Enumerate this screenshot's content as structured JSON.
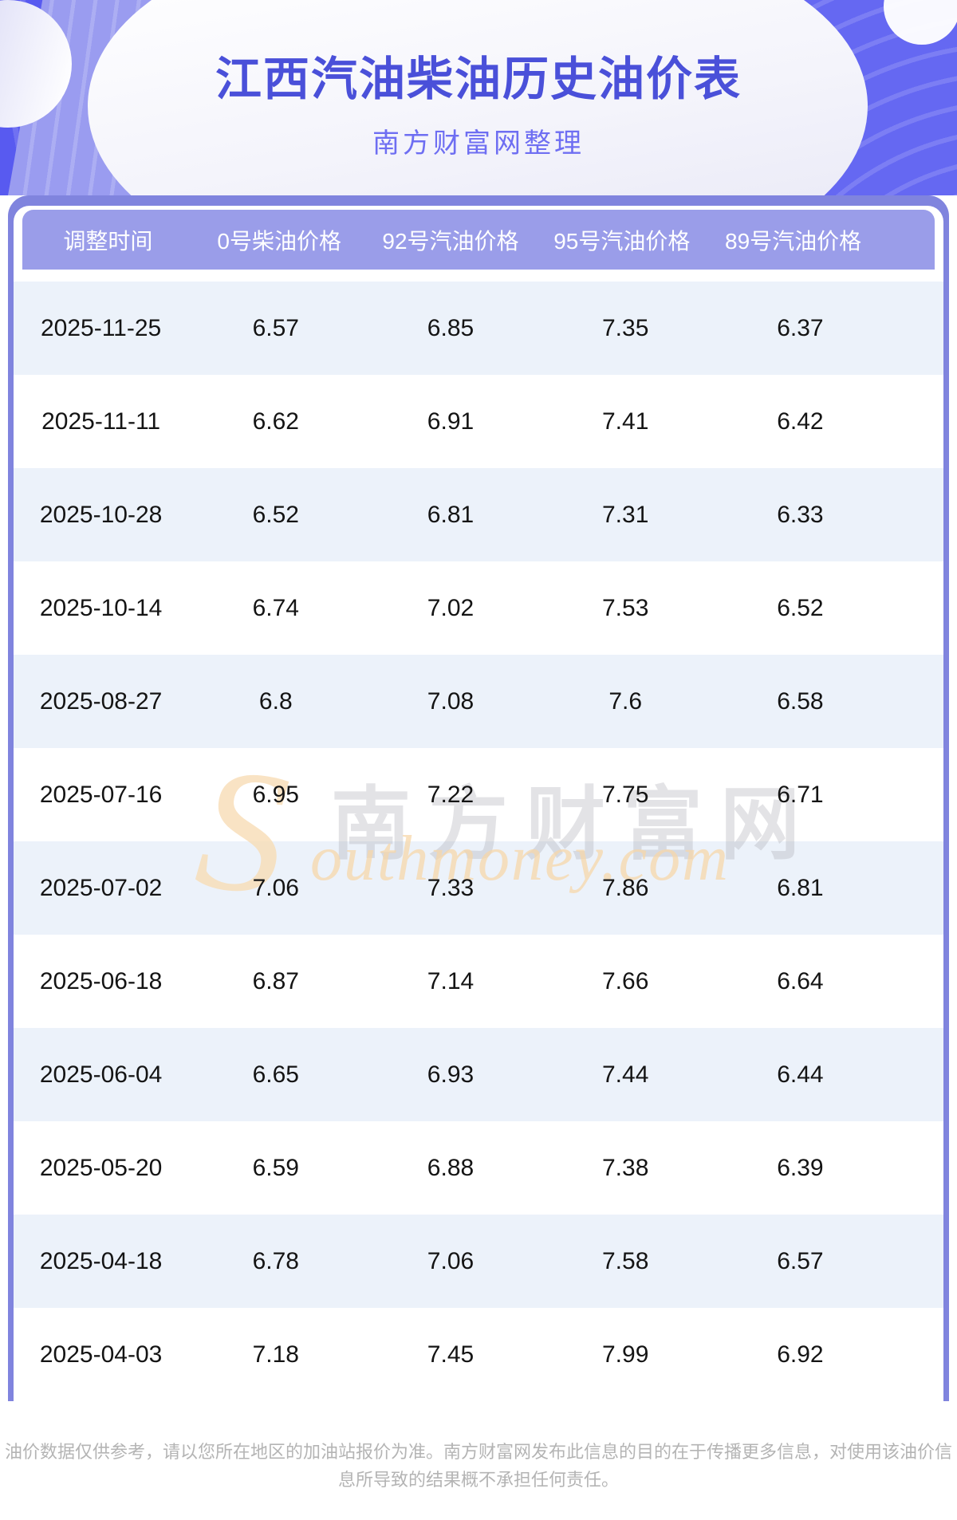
{
  "header": {
    "title": "江西汽油柴油历史油价表",
    "subtitle": "南方财富网整理"
  },
  "table": {
    "columns": [
      "调整时间",
      "0号柴油价格",
      "92号汽油价格",
      "95号汽油价格",
      "89号汽油价格"
    ],
    "rows": [
      [
        "2025-11-25",
        "6.57",
        "6.85",
        "7.35",
        "6.37"
      ],
      [
        "2025-11-11",
        "6.62",
        "6.91",
        "7.41",
        "6.42"
      ],
      [
        "2025-10-28",
        "6.52",
        "6.81",
        "7.31",
        "6.33"
      ],
      [
        "2025-10-14",
        "6.74",
        "7.02",
        "7.53",
        "6.52"
      ],
      [
        "2025-08-27",
        "6.8",
        "7.08",
        "7.6",
        "6.58"
      ],
      [
        "2025-07-16",
        "6.95",
        "7.22",
        "7.75",
        "6.71"
      ],
      [
        "2025-07-02",
        "7.06",
        "7.33",
        "7.86",
        "6.81"
      ],
      [
        "2025-06-18",
        "6.87",
        "7.14",
        "7.66",
        "6.64"
      ],
      [
        "2025-06-04",
        "6.65",
        "6.93",
        "7.44",
        "6.44"
      ],
      [
        "2025-05-20",
        "6.59",
        "6.88",
        "7.38",
        "6.39"
      ],
      [
        "2025-04-18",
        "6.78",
        "7.06",
        "7.58",
        "6.57"
      ],
      [
        "2025-04-03",
        "7.18",
        "7.45",
        "7.99",
        "6.92"
      ]
    ]
  },
  "watermark": {
    "s": "S",
    "cn": "南方财富网",
    "en": "outhmoney.com"
  },
  "footer": {
    "line1": "油价数据仅供参考，请以您所在地区的加油站报价为准。南方财富网发布此信息的目的在于传播更多信息，对使用该油价信",
    "line2": "息所导致的结果概不承担任何责任。"
  },
  "colors": {
    "hero_base": "#585af0",
    "hero_band_light": "#9a9cf0",
    "title_text": "#4a50d9",
    "subtitle_text": "#6e6ef2",
    "outer_band": "#8084de",
    "table_header_bg": "#9a9de9",
    "row_alt_bg": "#ecf2fa",
    "row_text": "#141414",
    "footer_text": "#b4b4b4",
    "watermark_orange": "#f8ddb6"
  }
}
